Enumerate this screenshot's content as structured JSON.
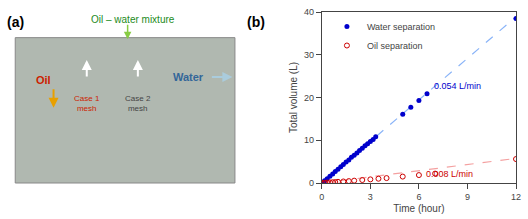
{
  "chart_data": [
    {
      "type": "illustration",
      "panel_label": "(a)",
      "title": "Oil – water mixture",
      "title_color": "#228B22",
      "title_arrow_color": "#88cc44",
      "color": "#b0b8b0",
      "annotations": [
        {
          "text": "Oil",
          "color": "#cc2200",
          "arrow_color": "#e8a000"
        },
        {
          "text": "Water",
          "color": "#336699",
          "arrow_color": "#aaccdd"
        },
        {
          "text": "Case 1\nmesh",
          "color": "#cc2200",
          "arrow_color": "#ffffff"
        },
        {
          "text": "Case 2\nmesh",
          "color": "#444444",
          "arrow_color": "#ffffff"
        }
      ]
    },
    {
      "type": "scatter",
      "panel_label": "(b)",
      "x_label": "Time (hour)",
      "y_label": "Total volume (L)",
      "xlim": [
        0,
        12
      ],
      "ylim": [
        0,
        40
      ],
      "xticks": [
        0,
        3,
        6,
        9,
        12
      ],
      "yticks": [
        0,
        10,
        20,
        30,
        40
      ],
      "grid": false,
      "legend": "upper left",
      "series": [
        {
          "type": "line",
          "line_style": "dashed",
          "color": "#8ab4f8",
          "x": [
            0,
            12
          ],
          "values": [
            0,
            38.88
          ]
        },
        {
          "type": "line",
          "line_style": "dashed",
          "color": "#f4a0a0",
          "x": [
            0,
            12
          ],
          "values": [
            0,
            5.76
          ]
        },
        {
          "name": "Water separation",
          "type": "scatter",
          "marker": "circle",
          "color": "#0000cc",
          "x": [
            0,
            0.17,
            0.33,
            0.5,
            0.67,
            0.83,
            1.0,
            1.17,
            1.33,
            1.5,
            1.67,
            1.83,
            2.0,
            2.17,
            2.33,
            2.5,
            2.67,
            2.83,
            3.0,
            3.17,
            3.33,
            5.0,
            5.5,
            6.0,
            6.5,
            12.0
          ],
          "values": [
            0,
            0.5,
            1.0,
            1.6,
            2.1,
            2.7,
            3.2,
            3.8,
            4.3,
            4.9,
            5.4,
            6.0,
            6.5,
            7.0,
            7.6,
            8.1,
            8.7,
            9.2,
            9.7,
            10.2,
            10.8,
            16.1,
            17.7,
            19.3,
            20.9,
            38.5
          ]
        },
        {
          "name": "Oil separation",
          "type": "scatter",
          "marker": "circle-open",
          "color": "#cc0000",
          "x": [
            0,
            0.17,
            0.33,
            0.5,
            0.67,
            0.83,
            1.0,
            1.33,
            1.67,
            2.0,
            2.5,
            3.0,
            3.5,
            4.0,
            5.0,
            6.0,
            7.0,
            12.0
          ],
          "values": [
            0,
            0.05,
            0.1,
            0.15,
            0.18,
            0.22,
            0.28,
            0.36,
            0.45,
            0.55,
            0.7,
            0.85,
            1.0,
            1.15,
            1.5,
            1.85,
            2.2,
            5.6
          ]
        }
      ],
      "annotations": [
        {
          "text": "0.054 L/min",
          "x": 6.8,
          "y": 21,
          "color": "#0000cc"
        },
        {
          "text": "0.008 L/min",
          "x": 6.3,
          "y": 0.5,
          "color": "#cc0000"
        }
      ]
    }
  ]
}
